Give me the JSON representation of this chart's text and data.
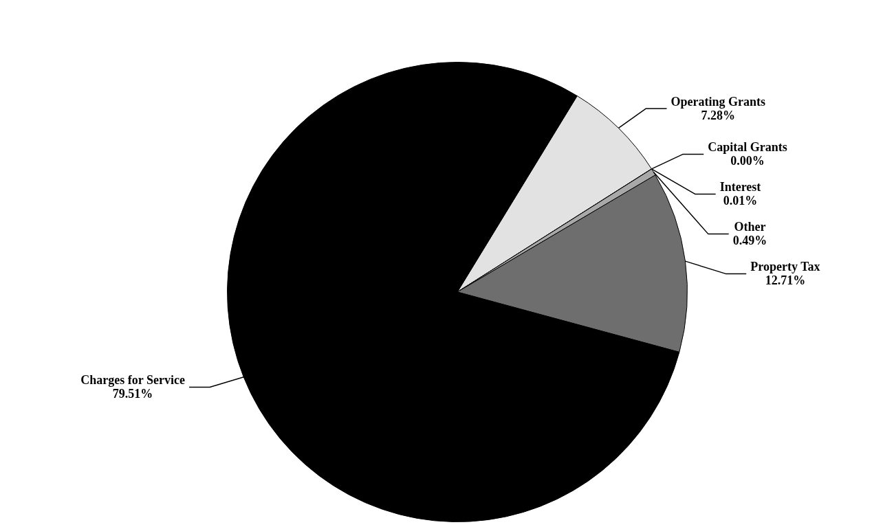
{
  "chart_data": {
    "type": "pie",
    "categories": [
      "Operating Grants",
      "Capital Grants",
      "Interest",
      "Other",
      "Property Tax",
      "Charges for Service"
    ],
    "values": [
      7.28,
      0.0,
      0.01,
      0.49,
      12.71,
      79.51
    ],
    "value_labels": [
      "7.28%",
      "0.00%",
      "0.01%",
      "0.49%",
      "12.71%",
      "79.51%"
    ],
    "colors": [
      "#e2e2e2",
      "#b0b0b0",
      "#909090",
      "#a8a8a8",
      "#6e6e6e",
      "#000000"
    ],
    "legend": false
  }
}
